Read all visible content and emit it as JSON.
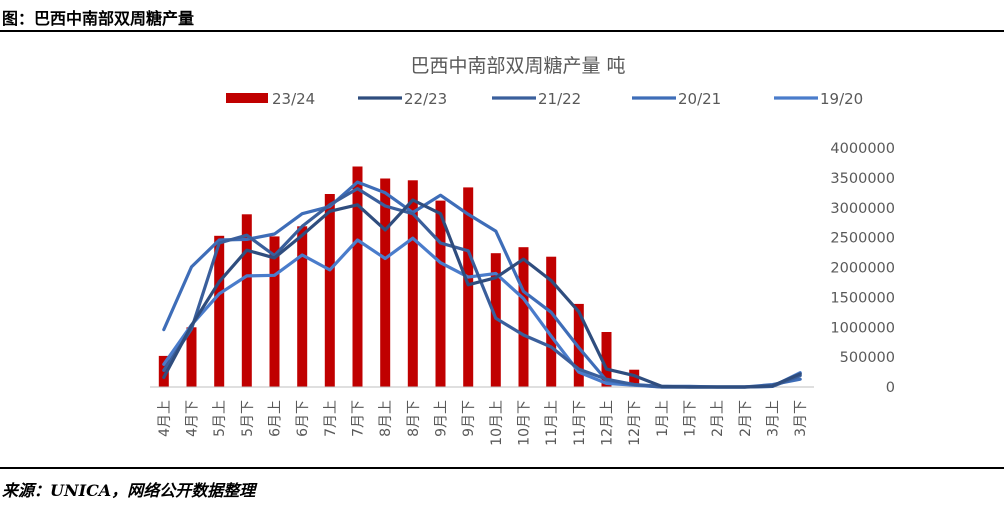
{
  "caption": "图：巴西中南部双周糖产量",
  "source": "来源：UNICA，网络公开数据整理",
  "chart_data": {
    "type": "bar",
    "title": "巴西中南部双周糖产量 吨",
    "xlabel": "",
    "ylabel": "",
    "ylim": [
      0,
      4000000
    ],
    "yticks": [
      0,
      500000,
      1000000,
      1500000,
      2000000,
      2500000,
      3000000,
      3500000,
      4000000
    ],
    "ytick_labels": [
      "0",
      "500000",
      "1000000",
      "1500000",
      "2000000",
      "2500000",
      "3000000",
      "3500000",
      "4000000"
    ],
    "y_axis_position": "right",
    "legend_position": "top",
    "grid": false,
    "categories": [
      "4月上",
      "4月下",
      "5月上",
      "5月下",
      "6月上",
      "6月下",
      "7月上",
      "7月下",
      "8月上",
      "8月下",
      "9月上",
      "9月下",
      "10月上",
      "10月下",
      "11月上",
      "11月下",
      "12月上",
      "12月下",
      "1月上",
      "1月下",
      "2月上",
      "2月下",
      "3月上",
      "3月下"
    ],
    "series": [
      {
        "name": "23/24",
        "kind": "bar",
        "color": "#C00000",
        "values": [
          520000,
          1000000,
          2530000,
          2890000,
          2520000,
          2690000,
          3230000,
          3690000,
          3490000,
          3460000,
          3120000,
          3340000,
          2240000,
          2340000,
          2180000,
          1390000,
          920000,
          290000,
          null,
          null,
          null,
          null,
          null,
          null
        ]
      },
      {
        "name": "22/23",
        "kind": "line",
        "color": "#2F4D7E",
        "values": [
          160000,
          1030000,
          1760000,
          2290000,
          2160000,
          2540000,
          2940000,
          3050000,
          2630000,
          3130000,
          2900000,
          1710000,
          1830000,
          2140000,
          1780000,
          1260000,
          300000,
          190000,
          10000,
          0,
          0,
          0,
          20000,
          220000
        ]
      },
      {
        "name": "21/22",
        "kind": "line",
        "color": "#3A5F9C",
        "values": [
          280000,
          970000,
          2410000,
          2540000,
          2200000,
          2690000,
          3050000,
          3320000,
          3030000,
          2900000,
          2410000,
          2280000,
          1150000,
          870000,
          670000,
          300000,
          130000,
          40000,
          0,
          0,
          0,
          0,
          10000,
          190000
        ]
      },
      {
        "name": "20/21",
        "kind": "line",
        "color": "#3E6DB8",
        "values": [
          960000,
          2010000,
          2460000,
          2470000,
          2560000,
          2900000,
          3020000,
          3430000,
          3250000,
          2920000,
          3210000,
          2890000,
          2610000,
          1600000,
          1250000,
          660000,
          110000,
          40000,
          10000,
          10000,
          0,
          0,
          40000,
          130000
        ]
      },
      {
        "name": "19/20",
        "kind": "line",
        "color": "#4A7CCB",
        "values": [
          380000,
          1040000,
          1560000,
          1860000,
          1870000,
          2210000,
          1960000,
          2460000,
          2150000,
          2490000,
          2080000,
          1840000,
          1900000,
          1480000,
          850000,
          250000,
          60000,
          30000,
          0,
          0,
          0,
          0,
          10000,
          240000
        ]
      }
    ]
  }
}
